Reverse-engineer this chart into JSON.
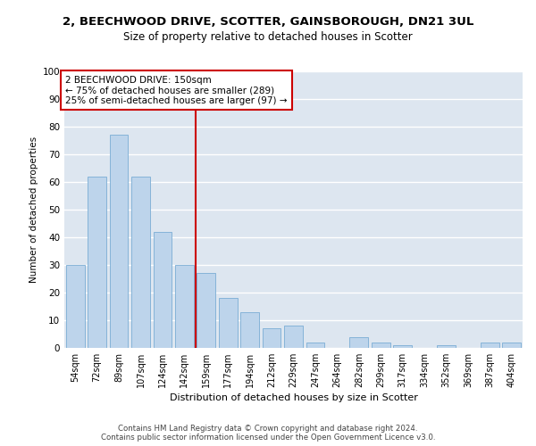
{
  "title_line1": "2, BEECHWOOD DRIVE, SCOTTER, GAINSBOROUGH, DN21 3UL",
  "title_line2": "Size of property relative to detached houses in Scotter",
  "xlabel": "Distribution of detached houses by size in Scotter",
  "ylabel": "Number of detached properties",
  "categories": [
    "54sqm",
    "72sqm",
    "89sqm",
    "107sqm",
    "124sqm",
    "142sqm",
    "159sqm",
    "177sqm",
    "194sqm",
    "212sqm",
    "229sqm",
    "247sqm",
    "264sqm",
    "282sqm",
    "299sqm",
    "317sqm",
    "334sqm",
    "352sqm",
    "369sqm",
    "387sqm",
    "404sqm"
  ],
  "values": [
    30,
    62,
    77,
    62,
    42,
    30,
    27,
    18,
    13,
    7,
    8,
    2,
    0,
    4,
    2,
    1,
    0,
    1,
    0,
    2,
    2
  ],
  "bar_color": "#bdd4eb",
  "bar_edge_color": "#7aadd4",
  "background_color": "#dde6f0",
  "grid_color": "#ffffff",
  "vline_x": 5.5,
  "vline_color": "#cc0000",
  "annotation_text": "2 BEECHWOOD DRIVE: 150sqm\n← 75% of detached houses are smaller (289)\n25% of semi-detached houses are larger (97) →",
  "annotation_box_facecolor": "#ffffff",
  "annotation_box_edgecolor": "#cc0000",
  "ylim": [
    0,
    100
  ],
  "yticks": [
    0,
    10,
    20,
    30,
    40,
    50,
    60,
    70,
    80,
    90,
    100
  ],
  "footer_line1": "Contains HM Land Registry data © Crown copyright and database right 2024.",
  "footer_line2": "Contains public sector information licensed under the Open Government Licence v3.0."
}
